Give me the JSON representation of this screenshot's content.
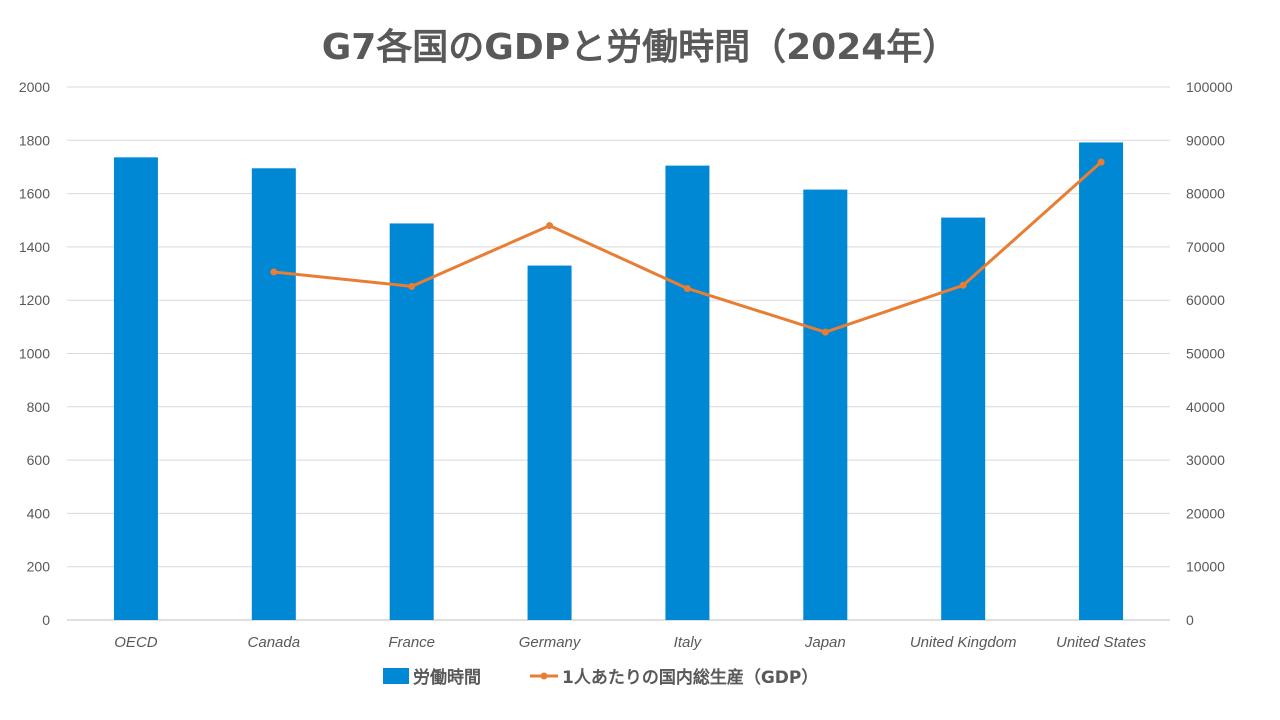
{
  "chart_data": {
    "type": "bar",
    "title": "G7各国のGDPと労働時間（2024年）",
    "categories": [
      "OECD",
      "Canada",
      "France",
      "Germany",
      "Italy",
      "Japan",
      "United Kingdom",
      "United States"
    ],
    "series": [
      {
        "name": "労働時間",
        "type": "bar",
        "axis": "left",
        "color": "#0088d4",
        "values": [
          1736,
          1695,
          1488,
          1330,
          1705,
          1615,
          1510,
          1792
        ]
      },
      {
        "name": "1人あたりの国内総生産（GDP）",
        "type": "line",
        "axis": "right",
        "color": "#e87d33",
        "values": [
          null,
          65300,
          62600,
          74000,
          62200,
          54000,
          62800,
          85900
        ]
      }
    ],
    "y_left": {
      "min": 0,
      "max": 2000,
      "step": 200
    },
    "y_right": {
      "min": 0,
      "max": 100000,
      "step": 10000
    },
    "grid": true,
    "legend_position": "bottom"
  }
}
